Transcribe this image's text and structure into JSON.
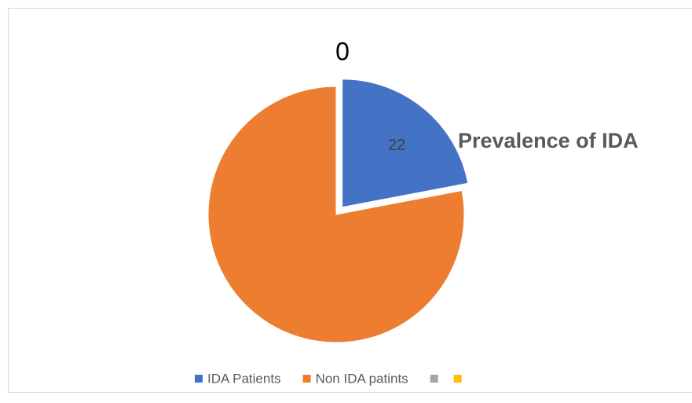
{
  "chart_data": {
    "type": "pie",
    "title": "Prevalence of IDA",
    "categories": [
      "IDA Patients",
      "Non IDA patints",
      null,
      null
    ],
    "values": [
      22,
      78,
      0,
      0
    ],
    "value_labels": [
      "22",
      null,
      "0",
      null
    ],
    "colors": [
      "#4472c4",
      "#ed7d31",
      "#a5a5a5",
      "#ffc000"
    ],
    "legend": "bottom"
  }
}
